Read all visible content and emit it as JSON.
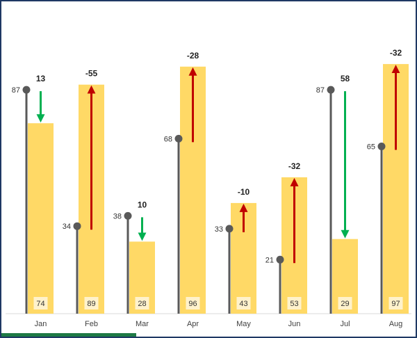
{
  "chart_data": {
    "type": "bar",
    "categories": [
      "Jan",
      "Feb",
      "Mar",
      "Apr",
      "May",
      "Jun",
      "Jul",
      "Aug"
    ],
    "series": [
      {
        "values": [
          87,
          34,
          38,
          68,
          33,
          21,
          87,
          65
        ]
      },
      {
        "values": [
          74,
          89,
          28,
          96,
          43,
          53,
          29,
          97
        ]
      }
    ],
    "delta_labels": [
      "13",
      "-55",
      "10",
      "-28",
      "-10",
      "-32",
      "58",
      "-32"
    ],
    "colors": {
      "bar": "#ffd966",
      "stem": "#595959",
      "arrow_down": "#00b050",
      "arrow_up": "#c00000",
      "value_box": "#fff2cc",
      "frame": "#1f3864",
      "accent": "#1e7a45"
    },
    "ylim": [
      0,
      100
    ],
    "grid": false,
    "legend": "none"
  }
}
